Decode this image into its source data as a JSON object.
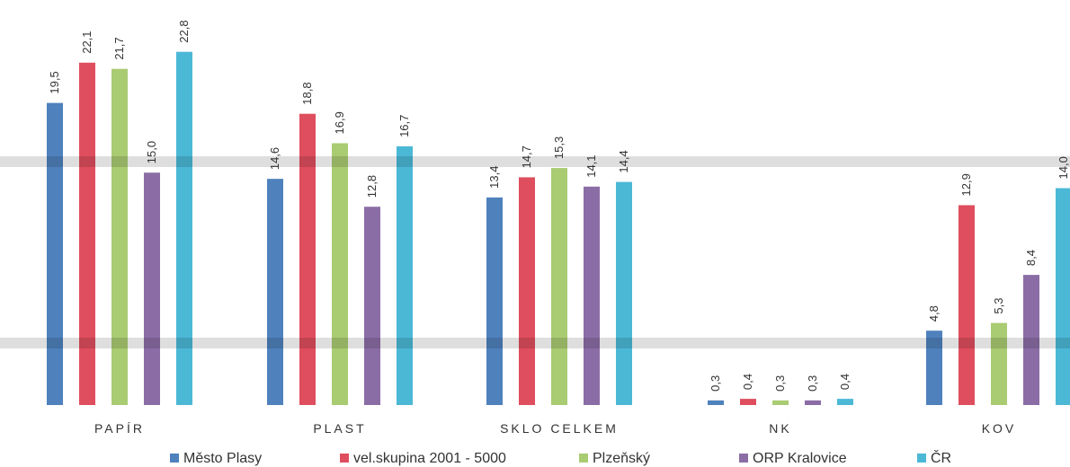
{
  "chart_data": {
    "type": "bar",
    "categories": [
      "PAPÍR",
      "PLAST",
      "SKLO CELKEM",
      "NK",
      "KOV"
    ],
    "series": [
      {
        "name": "Město Plasy",
        "color": "#4f81bd",
        "values": [
          19.5,
          14.6,
          13.4,
          0.3,
          4.8
        ],
        "labels": [
          "19,5",
          "14,6",
          "13,4",
          "0,3",
          "4,8"
        ]
      },
      {
        "name": "vel.skupina 2001 - 5000",
        "color": "#df4e5e",
        "values": [
          22.1,
          18.8,
          14.7,
          0.4,
          12.9
        ],
        "labels": [
          "22,1",
          "18,8",
          "14,7",
          "0,4",
          "12,9"
        ]
      },
      {
        "name": "Plzeňský",
        "color": "#a9cb72",
        "values": [
          21.7,
          16.9,
          15.3,
          0.3,
          5.3
        ],
        "labels": [
          "21,7",
          "16,9",
          "15,3",
          "0,3",
          "5,3"
        ]
      },
      {
        "name": "ORP Kralovice",
        "color": "#8b6da6",
        "values": [
          15.0,
          12.8,
          14.1,
          0.3,
          8.4
        ],
        "labels": [
          "15,0",
          "12,8",
          "14,1",
          "0,3",
          "8,4"
        ]
      },
      {
        "name": "ČR",
        "color": "#4bb8d6",
        "values": [
          22.8,
          16.7,
          14.4,
          0.4,
          14.0
        ],
        "labels": [
          "22,8",
          "16,7",
          "14,4",
          "0,4",
          "14,0"
        ]
      }
    ],
    "ylim": [
      0,
      25
    ],
    "grid": false,
    "legend_position": "bottom"
  }
}
